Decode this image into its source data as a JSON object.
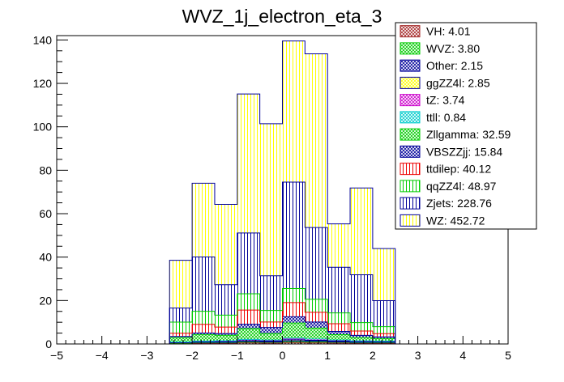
{
  "chart_data": {
    "type": "bar",
    "title": "WVZ_1j_electron_eta_3",
    "xlabel": "",
    "ylabel": "",
    "xlim": [
      -5,
      5
    ],
    "ylim": [
      0,
      142
    ],
    "x_ticks": [
      -5,
      -4,
      -3,
      -2,
      -1,
      0,
      1,
      2,
      3,
      4,
      5
    ],
    "y_ticks": [
      0,
      20,
      40,
      60,
      80,
      100,
      120,
      140
    ],
    "bin_edges": [
      -2.5,
      -2.0,
      -1.5,
      -1.0,
      -0.5,
      0.0,
      0.5,
      1.0,
      1.5,
      2.0,
      2.5
    ],
    "stacked": true,
    "legend_placement": "top-right",
    "series": [
      {
        "name": "VH: 4.01",
        "color": "#a52a2a",
        "hatch": "cross",
        "values": [
          0.2,
          0.3,
          0.3,
          0.5,
          0.4,
          0.6,
          0.5,
          0.4,
          0.3,
          0.3
        ]
      },
      {
        "name": "WVZ: 3.80",
        "color": "#00cc00",
        "hatch": "cross",
        "values": [
          0.2,
          0.3,
          0.3,
          0.4,
          0.4,
          0.5,
          0.5,
          0.4,
          0.3,
          0.3
        ]
      },
      {
        "name": "Other: 2.15",
        "color": "#000099",
        "hatch": "cross",
        "values": [
          0.2,
          0.2,
          0.2,
          0.3,
          0.2,
          0.3,
          0.3,
          0.2,
          0.2,
          0.2
        ]
      },
      {
        "name": "ggZZ4l: 2.85",
        "color": "#ffff00",
        "hatch": "cross",
        "values": [
          0.1,
          0.2,
          0.3,
          0.3,
          0.3,
          0.5,
          0.4,
          0.3,
          0.3,
          0.2
        ]
      },
      {
        "name": "tZ: 3.74",
        "color": "#cc00cc",
        "hatch": "cross",
        "values": [
          0.2,
          0.3,
          0.3,
          0.5,
          0.4,
          0.6,
          0.5,
          0.4,
          0.3,
          0.3
        ]
      },
      {
        "name": "ttll: 0.84",
        "color": "#00cccc",
        "hatch": "cross",
        "values": [
          0.05,
          0.05,
          0.1,
          0.1,
          0.1,
          0.15,
          0.1,
          0.1,
          0.05,
          0.05
        ]
      },
      {
        "name": "Zllgamma: 32.59",
        "color": "#00cc00",
        "hatch": "cross",
        "values": [
          2.0,
          3.0,
          2.5,
          5.0,
          3.0,
          7.0,
          5.0,
          2.5,
          1.5,
          1.1
        ]
      },
      {
        "name": "VBSZZjj: 15.84",
        "color": "#000099",
        "hatch": "cross",
        "values": [
          0.5,
          0.7,
          0.8,
          2.0,
          2.8,
          2.9,
          2.8,
          1.5,
          1.0,
          0.8
        ]
      },
      {
        "name": "ttdilep: 40.12",
        "color": "#ee0000",
        "hatch": "vertical",
        "values": [
          1.5,
          4.0,
          3.0,
          6.5,
          2.5,
          6.5,
          4.5,
          3.5,
          2.0,
          1.5
        ]
      },
      {
        "name": "qqZZ4l: 48.97",
        "color": "#00cc00",
        "hatch": "vertical",
        "values": [
          5.1,
          6.0,
          5.5,
          7.5,
          5.3,
          6.5,
          6.0,
          5.0,
          3.9,
          3.2
        ]
      },
      {
        "name": "Zjets: 228.76",
        "color": "#000099",
        "hatch": "vertical",
        "values": [
          6.5,
          25.0,
          14.0,
          28.0,
          16.0,
          49.0,
          33.0,
          21.0,
          22.0,
          12.0
        ]
      },
      {
        "name": "WZ: 452.72",
        "color": "#ffff00",
        "hatch": "vertical",
        "values": [
          22.0,
          34.0,
          37.0,
          64.0,
          70.0,
          65.0,
          80.0,
          20.0,
          40.0,
          24.0
        ]
      }
    ]
  }
}
